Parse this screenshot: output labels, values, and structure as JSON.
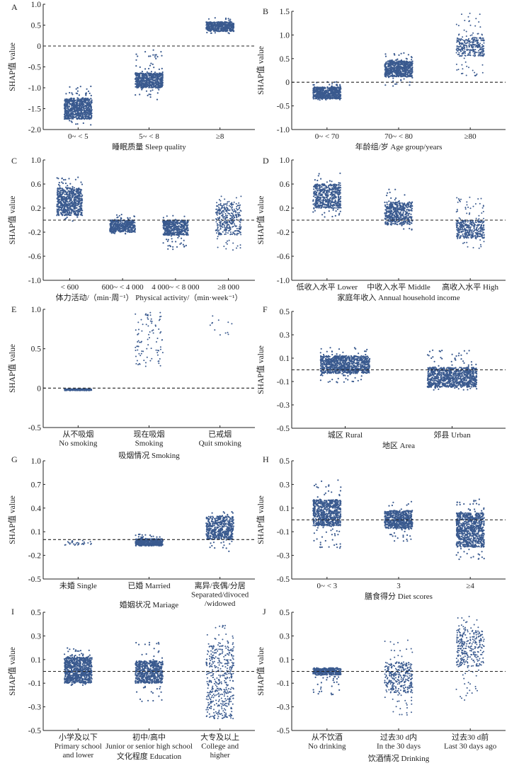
{
  "figure": {
    "type": "SHAP dependence strip plots",
    "marker_color": "#3a5a8f",
    "axis_color": "#222222",
    "baseline_style": "dashed"
  },
  "chart_data": [
    {
      "panel": "A",
      "type": "scatter",
      "ylabel": "SHAP值 value",
      "xlabel": "睡眠质量 Sleep quality",
      "categories": [
        "0~ < 5",
        "5~ < 8",
        "≥8"
      ],
      "ylim": [
        -2.0,
        1.0
      ],
      "yticks": [
        1.0,
        0.5,
        0,
        -0.5,
        -1.0,
        -1.5,
        -2.0
      ],
      "ytick_labels": [
        "1.0",
        "0.5",
        "0",
        "-0.5",
        "-1.0",
        "-1.5",
        "-2.0"
      ],
      "groups": [
        {
          "core": [
            -1.75,
            -1.25
          ],
          "outlier_range": [
            -1.9,
            -0.93
          ],
          "density": "high",
          "n_points": 700
        },
        {
          "core": [
            -1.0,
            -0.65
          ],
          "outlier_range": [
            -1.3,
            -0.02
          ],
          "density": "high",
          "n_points": 600
        },
        {
          "core": [
            0.35,
            0.58
          ],
          "outlier_range": [
            0.3,
            0.68
          ],
          "density": "high",
          "n_points": 450
        }
      ]
    },
    {
      "panel": "B",
      "type": "scatter",
      "ylabel": "SHAP值 value",
      "xlabel": "年龄组/岁 Age group/years",
      "categories": [
        "0~ < 70",
        "70~ < 80",
        "≥80"
      ],
      "ylim": [
        -1.0,
        1.5
      ],
      "yticks": [
        1.5,
        1.0,
        0.5,
        0,
        -0.5,
        -1.0
      ],
      "ytick_labels": [
        "1.5",
        "1.0",
        "0.5",
        "0",
        "-0.5",
        "-1.0"
      ],
      "groups": [
        {
          "core": [
            -0.35,
            -0.1
          ],
          "outlier_range": [
            -0.38,
            0.02
          ],
          "density": "high",
          "n_points": 600
        },
        {
          "core": [
            0.12,
            0.45
          ],
          "outlier_range": [
            -0.08,
            0.62
          ],
          "density": "high",
          "n_points": 600
        },
        {
          "core": [
            0.55,
            0.95
          ],
          "outlier_range": [
            0.12,
            1.47
          ],
          "density": "medium",
          "n_points": 320
        }
      ]
    },
    {
      "panel": "C",
      "type": "scatter",
      "ylabel": "SHAP值 value",
      "xlabel": "体力活动/（min·周⁻¹） Physical activity/（min·week⁻¹）",
      "categories": [
        "< 600",
        "600~ < 4 000",
        "4 000~ < 8 000",
        "≥8 000"
      ],
      "ylim": [
        -1.0,
        1.0
      ],
      "yticks": [
        1.0,
        0.6,
        0.2,
        -0.2,
        -0.6,
        -1.0
      ],
      "ytick_labels": [
        "1.0",
        "0.6",
        "0.2",
        "-0.2",
        "-0.6",
        "-1.0"
      ],
      "groups": [
        {
          "core": [
            0.08,
            0.54
          ],
          "outlier_range": [
            -0.02,
            0.72
          ],
          "density": "high",
          "n_points": 600
        },
        {
          "core": [
            -0.2,
            0.0
          ],
          "outlier_range": [
            -0.23,
            0.1
          ],
          "density": "high",
          "n_points": 450
        },
        {
          "core": [
            -0.25,
            0.0
          ],
          "outlier_range": [
            -0.5,
            0.1
          ],
          "density": "high",
          "n_points": 450
        },
        {
          "core": [
            -0.25,
            0.3
          ],
          "outlier_range": [
            -0.5,
            0.4
          ],
          "density": "medium",
          "n_points": 350
        }
      ]
    },
    {
      "panel": "D",
      "type": "scatter",
      "ylabel": "SHAP值 value",
      "xlabel": "家庭年收入 Annual household income",
      "categories": [
        "低收入水平 Lower",
        "中收入水平 Middle",
        "高收入水平 High"
      ],
      "ylim": [
        -1.0,
        1.0
      ],
      "yticks": [
        1.0,
        0.6,
        0.2,
        -0.2,
        -0.6,
        -1.0
      ],
      "ytick_labels": [
        "1.0",
        "0.6",
        "0.2",
        "-0.2",
        "-0.6",
        "-1.0"
      ],
      "groups": [
        {
          "core": [
            0.2,
            0.6
          ],
          "outlier_range": [
            0.05,
            0.78
          ],
          "density": "high",
          "n_points": 500
        },
        {
          "core": [
            -0.08,
            0.3
          ],
          "outlier_range": [
            -0.18,
            0.52
          ],
          "density": "high",
          "n_points": 450
        },
        {
          "core": [
            -0.3,
            0.0
          ],
          "outlier_range": [
            -0.48,
            0.38
          ],
          "density": "medium",
          "n_points": 400
        }
      ]
    },
    {
      "panel": "E",
      "type": "scatter",
      "ylabel": "SHAP值 value",
      "xlabel": "吸烟情况 Smoking",
      "categories": [
        "从不吸烟\nNo smoking",
        "现在吸烟\nSmoking",
        "已戒烟\nQuit smoking"
      ],
      "ylim": [
        -0.5,
        1.0
      ],
      "yticks": [
        1.0,
        0.5,
        0,
        -0.5
      ],
      "ytick_labels": [
        "1.0",
        "0.5",
        "0",
        "-0.5"
      ],
      "groups": [
        {
          "core": [
            -0.03,
            -0.01
          ],
          "outlier_range": [
            -0.03,
            -0.01
          ],
          "density": "high",
          "n_points": 150
        },
        {
          "core": [
            0.27,
            0.97
          ],
          "outlier_range": [
            0.27,
            0.97
          ],
          "density": "low",
          "n_points": 90
        },
        {
          "core": [
            0.64,
            0.93
          ],
          "outlier_range": [
            0.64,
            0.93
          ],
          "density": "low",
          "n_points": 12
        }
      ]
    },
    {
      "panel": "F",
      "type": "scatter",
      "ylabel": "SHAP值 value",
      "xlabel": "地区 Area",
      "categories": [
        "城区 Rural",
        "郊县 Urban"
      ],
      "ylim": [
        -0.5,
        0.5
      ],
      "yticks": [
        0.5,
        0.3,
        0.1,
        -0.1,
        -0.3,
        -0.5
      ],
      "ytick_labels": [
        "0.5",
        "0.3",
        "0.1",
        "-0.1",
        "-0.3",
        "-0.5"
      ],
      "groups": [
        {
          "core": [
            -0.03,
            0.12
          ],
          "outlier_range": [
            -0.11,
            0.2
          ],
          "density": "high",
          "n_points": 900
        },
        {
          "core": [
            -0.15,
            0.02
          ],
          "outlier_range": [
            -0.18,
            0.17
          ],
          "density": "high",
          "n_points": 900
        }
      ]
    },
    {
      "panel": "G",
      "type": "scatter",
      "ylabel": "SHAP值 value",
      "xlabel": "婚姻状况 Mariage",
      "categories": [
        "未婚 Single",
        "已婚 Married",
        "离异/丧偶/分居\nSeparated/divoced\n/widowed"
      ],
      "ylim": [
        -0.5,
        1.0
      ],
      "yticks": [
        1.0,
        0.7,
        0.4,
        0.1,
        -0.2,
        -0.5
      ],
      "ytick_labels": [
        "1.0",
        "0.7",
        "0.4",
        "0.1",
        "-0.2",
        "-0.5"
      ],
      "groups": [
        {
          "core": [
            -0.07,
            0.0
          ],
          "outlier_range": [
            -0.07,
            0.01
          ],
          "density": "low",
          "n_points": 30
        },
        {
          "core": [
            -0.08,
            0.01
          ],
          "outlier_range": [
            -0.08,
            0.07
          ],
          "density": "high",
          "n_points": 450
        },
        {
          "core": [
            0.0,
            0.3
          ],
          "outlier_range": [
            -0.15,
            0.36
          ],
          "density": "high",
          "n_points": 500
        }
      ]
    },
    {
      "panel": "H",
      "type": "scatter",
      "ylabel": "SHAP值 value",
      "xlabel": "膳食得分 Diet scores",
      "categories": [
        "0~ < 3",
        "3",
        "≥4"
      ],
      "ylim": [
        -0.5,
        0.5
      ],
      "yticks": [
        0.5,
        0.3,
        0.1,
        -0.1,
        -0.3,
        -0.5
      ],
      "ytick_labels": [
        "0.5",
        "0.3",
        "0.1",
        "-0.1",
        "-0.3",
        "-0.5"
      ],
      "groups": [
        {
          "core": [
            -0.05,
            0.17
          ],
          "outlier_range": [
            -0.24,
            0.34
          ],
          "density": "high",
          "n_points": 700
        },
        {
          "core": [
            -0.07,
            0.08
          ],
          "outlier_range": [
            -0.18,
            0.17
          ],
          "density": "high",
          "n_points": 600
        },
        {
          "core": [
            -0.23,
            0.06
          ],
          "outlier_range": [
            -0.34,
            0.18
          ],
          "density": "high",
          "n_points": 800
        }
      ]
    },
    {
      "panel": "I",
      "type": "scatter",
      "ylabel": "SHAP值 value",
      "xlabel": "文化程度 Education",
      "categories": [
        "小学及以下\nPrimary school\nand lower",
        "初中/高中\nJunior or senior high school",
        "大专及以上\nCollege and\nhigher"
      ],
      "ylim": [
        -0.5,
        0.5
      ],
      "yticks": [
        0.5,
        0.3,
        0.1,
        -0.1,
        -0.3,
        -0.5
      ],
      "ytick_labels": [
        "0.5",
        "0.3",
        "0.1",
        "-0.1",
        "-0.3",
        "-0.5"
      ],
      "groups": [
        {
          "core": [
            -0.1,
            0.12
          ],
          "outlier_range": [
            -0.12,
            0.2
          ],
          "density": "high",
          "n_points": 800
        },
        {
          "core": [
            -0.1,
            0.09
          ],
          "outlier_range": [
            -0.26,
            0.26
          ],
          "density": "high",
          "n_points": 600
        },
        {
          "core": [
            -0.4,
            0.22
          ],
          "outlier_range": [
            -0.4,
            0.39
          ],
          "density": "medium",
          "n_points": 450
        }
      ]
    },
    {
      "panel": "J",
      "type": "scatter",
      "ylabel": "SHAP值 value",
      "xlabel": "饮酒情况 Drinking",
      "categories": [
        "从不饮酒\nNo drinking",
        "过去30 d内\nIn the 30 days",
        "过去30 d前\nLast 30 days ago"
      ],
      "ylim": [
        -0.5,
        0.5
      ],
      "yticks": [
        0.5,
        0.3,
        0.1,
        -0.1,
        -0.3,
        -0.5
      ],
      "ytick_labels": [
        "0.5",
        "0.3",
        "0.1",
        "-0.1",
        "-0.3",
        "-0.5"
      ],
      "groups": [
        {
          "core": [
            -0.03,
            0.03
          ],
          "outlier_range": [
            -0.2,
            0.03
          ],
          "density": "high",
          "n_points": 350
        },
        {
          "core": [
            -0.18,
            0.08
          ],
          "outlier_range": [
            -0.37,
            0.27
          ],
          "density": "medium",
          "n_points": 330
        },
        {
          "core": [
            0.04,
            0.36
          ],
          "outlier_range": [
            -0.25,
            0.48
          ],
          "density": "medium",
          "n_points": 300
        }
      ]
    }
  ]
}
